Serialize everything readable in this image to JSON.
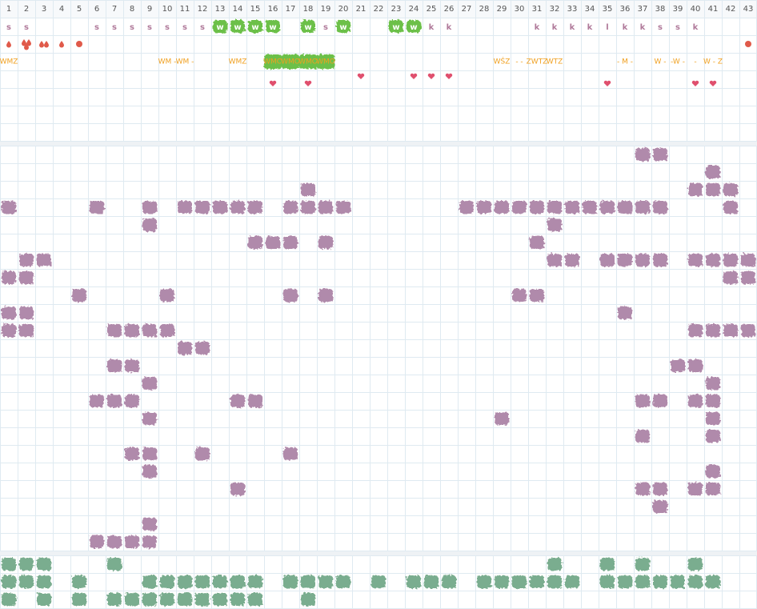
{
  "columns": [
    1,
    2,
    3,
    4,
    5,
    6,
    7,
    8,
    9,
    10,
    11,
    12,
    13,
    14,
    15,
    16,
    17,
    18,
    19,
    20,
    21,
    22,
    23,
    24,
    25,
    26,
    27,
    28,
    29,
    30,
    31,
    32,
    33,
    34,
    35,
    36,
    37,
    38,
    39,
    40,
    41,
    42,
    43
  ],
  "row_labels": [
    "s",
    "s",
    null,
    null,
    null,
    "s",
    "s",
    "s",
    "s",
    "s",
    "s",
    "s",
    "w",
    "w",
    "w",
    "w",
    null,
    "w",
    "s",
    "w",
    null,
    null,
    "w",
    "w",
    "k",
    "k",
    null,
    null,
    null,
    null,
    "k",
    "k",
    "k",
    "k",
    "l",
    "k",
    "k",
    "s",
    "s",
    "k",
    null,
    null,
    null
  ],
  "schedule_codes": [
    "WMZ",
    null,
    null,
    null,
    null,
    null,
    null,
    null,
    null,
    "WM -",
    "WM -",
    null,
    null,
    "WMZ",
    null,
    "WMO",
    "WMO",
    "WMO",
    "WMO",
    null,
    null,
    null,
    null,
    null,
    null,
    null,
    null,
    null,
    "WŚZ",
    "- -",
    "ZWTZ",
    "WTZ",
    null,
    null,
    null,
    "- M -",
    null,
    "W -",
    "-W -",
    "-",
    "W - Z",
    null,
    null
  ]
}
